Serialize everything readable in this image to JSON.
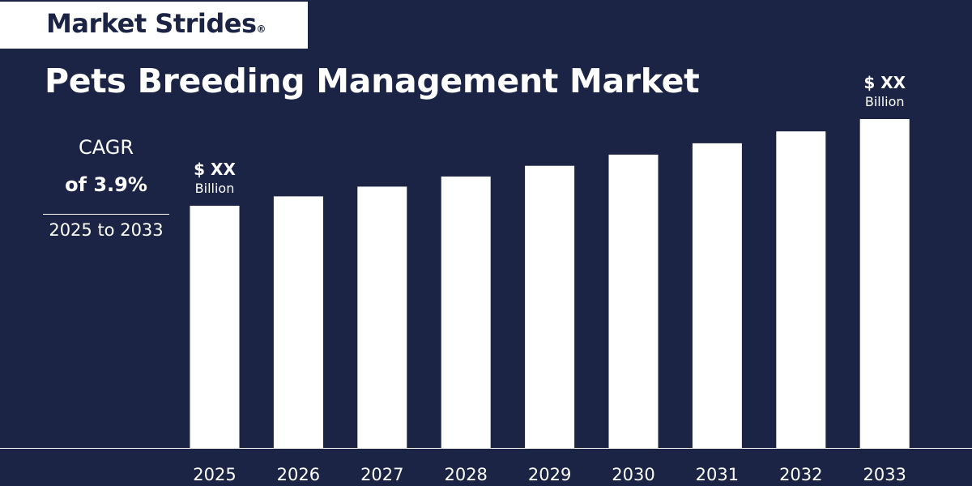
{
  "brand": {
    "name": "Market Strides",
    "mark": "®"
  },
  "title": "Pets Breeding Management Market",
  "cagr": {
    "label": "CAGR",
    "value_text": "of  3.9%",
    "period": "2025 to 2033"
  },
  "colors": {
    "background": "#1b2444",
    "bar": "#ffffff",
    "text": "#ffffff",
    "logo_text": "#1b2444"
  },
  "chart_data": {
    "type": "bar",
    "title": "Pets Breeding Management Market",
    "categories": [
      "2025",
      "2026",
      "2027",
      "2028",
      "2029",
      "2030",
      "2031",
      "2032",
      "2033"
    ],
    "values": [
      1.0,
      1.039,
      1.079,
      1.121,
      1.165,
      1.211,
      1.258,
      1.307,
      1.358
    ],
    "value_note": "relative bar heights (no y-axis printed)",
    "xlabel": "",
    "ylabel": "",
    "grid": false,
    "annotations": [
      {
        "category": "2025",
        "line1": "$ XX",
        "line2": "Billion"
      },
      {
        "category": "2033",
        "line1": "$ XX",
        "line2": "Billion"
      }
    ]
  }
}
